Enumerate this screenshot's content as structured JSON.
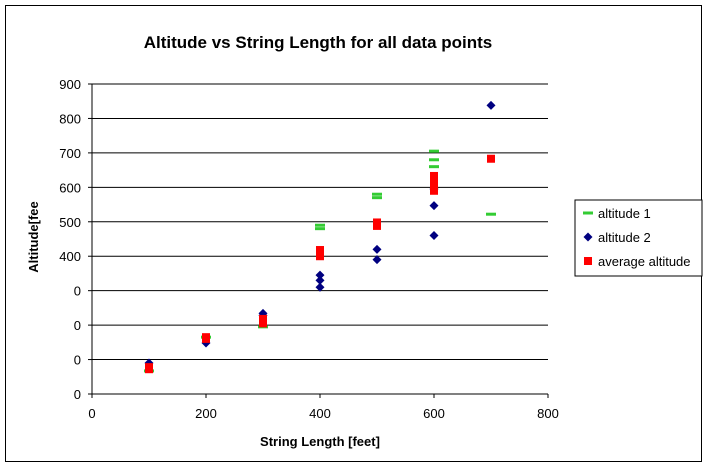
{
  "chart_data": {
    "type": "scatter",
    "title": "Altitude vs String Length for all data points",
    "xlabel": "String Length [feet]",
    "ylabel": "Altitude[fee",
    "xlim": [
      0,
      800
    ],
    "ylim": [
      0,
      900
    ],
    "x_ticks": [
      "0",
      "200",
      "400",
      "600",
      "800"
    ],
    "y_tick_labels": [
      "0",
      "0",
      "0",
      "0",
      "400",
      "500",
      "600",
      "700",
      "800",
      "900"
    ],
    "grid": "horizontal",
    "legend_position": "right",
    "series": [
      {
        "name": "altitude 1",
        "marker": "dash",
        "color": "#33cc33",
        "points": [
          [
            100,
            67
          ],
          [
            200,
            165
          ],
          [
            300,
            195
          ],
          [
            400,
            480
          ],
          [
            400,
            490
          ],
          [
            500,
            570
          ],
          [
            500,
            580
          ],
          [
            600,
            660
          ],
          [
            600,
            680
          ],
          [
            600,
            705
          ],
          [
            700,
            522
          ]
        ]
      },
      {
        "name": "altitude 2",
        "marker": "diamond",
        "color": "#000080",
        "points": [
          [
            100,
            90
          ],
          [
            200,
            148
          ],
          [
            300,
            228
          ],
          [
            300,
            234
          ],
          [
            400,
            310
          ],
          [
            400,
            330
          ],
          [
            400,
            345
          ],
          [
            500,
            390
          ],
          [
            500,
            420
          ],
          [
            600,
            460
          ],
          [
            600,
            547
          ],
          [
            600,
            595
          ],
          [
            700,
            838
          ]
        ]
      },
      {
        "name": "average altitude",
        "marker": "square",
        "color": "#ff0000",
        "points": [
          [
            100,
            72
          ],
          [
            100,
            78
          ],
          [
            200,
            160
          ],
          [
            200,
            165
          ],
          [
            300,
            205
          ],
          [
            300,
            218
          ],
          [
            400,
            400
          ],
          [
            400,
            410
          ],
          [
            400,
            418
          ],
          [
            500,
            488
          ],
          [
            500,
            498
          ],
          [
            600,
            590
          ],
          [
            600,
            608
          ],
          [
            600,
            622
          ],
          [
            600,
            633
          ],
          [
            700,
            683
          ]
        ]
      }
    ]
  }
}
